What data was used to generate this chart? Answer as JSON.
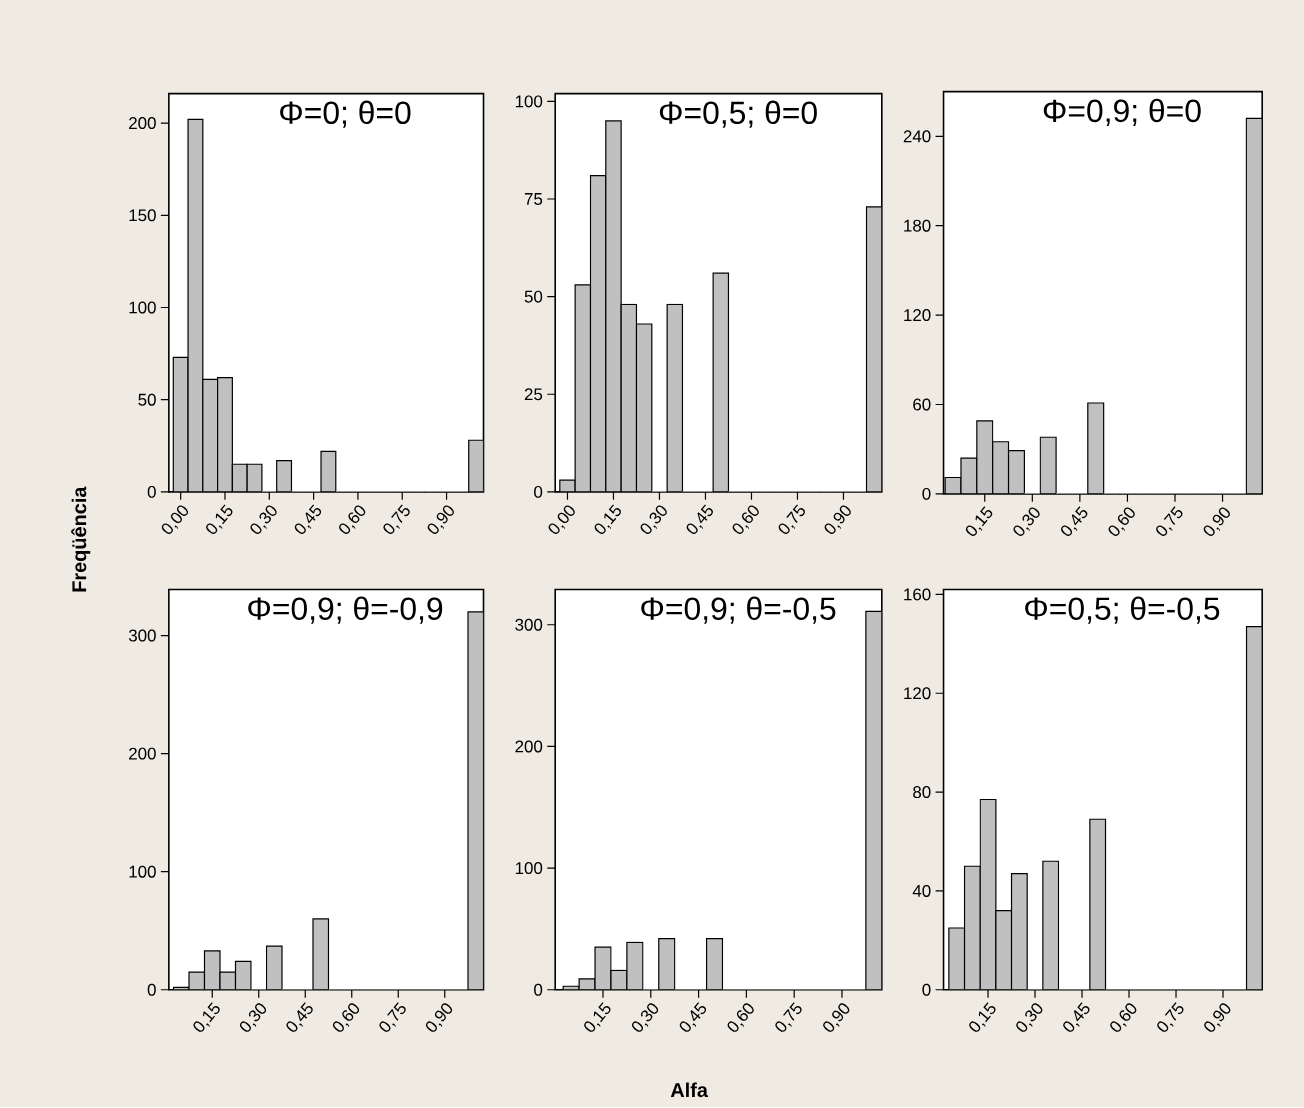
{
  "chart_data": [
    {
      "type": "histogram",
      "title": "Φ=0; θ=0",
      "ylabel": "Freqüência",
      "color": "#c0c0c0",
      "bins": [
        -0.025,
        0.025,
        0.075,
        0.125,
        0.175,
        0.225,
        0.275,
        0.325,
        0.375,
        0.425,
        0.475,
        0.525,
        0.575,
        0.625,
        0.675,
        0.725,
        0.775,
        0.825,
        0.875,
        0.925,
        0.975,
        1.025
      ],
      "values": [
        73,
        202,
        61,
        62,
        15,
        15,
        0,
        17,
        0,
        0,
        22,
        0,
        0,
        0,
        0,
        0,
        0,
        0,
        0,
        0,
        28
      ],
      "xlim": [
        -0.04,
        1.025
      ],
      "ylim": [
        0,
        216
      ],
      "xticks": [
        {
          "value": 0,
          "label": "0,00"
        },
        {
          "value": 0.15,
          "label": "0,15"
        },
        {
          "value": 0.3,
          "label": "0,30"
        },
        {
          "value": 0.45,
          "label": "0,45"
        },
        {
          "value": 0.6,
          "label": "0,60"
        },
        {
          "value": 0.75,
          "label": "0,75"
        },
        {
          "value": 0.9,
          "label": "0,90"
        }
      ],
      "yticks": [
        0,
        50,
        100,
        150,
        200
      ]
    },
    {
      "type": "histogram",
      "title": "Φ=0,5; θ=0",
      "color": "#c0c0c0",
      "bins": [
        -0.025,
        0.025,
        0.075,
        0.125,
        0.175,
        0.225,
        0.275,
        0.325,
        0.375,
        0.425,
        0.475,
        0.525,
        0.575,
        0.625,
        0.675,
        0.725,
        0.775,
        0.825,
        0.875,
        0.925,
        0.975,
        1.025
      ],
      "values": [
        3,
        53,
        81,
        95,
        48,
        43,
        0,
        48,
        0,
        0,
        56,
        0,
        0,
        0,
        0,
        0,
        0,
        0,
        0,
        0,
        73
      ],
      "xlim": [
        -0.04,
        1.025
      ],
      "ylim": [
        0,
        102
      ],
      "xticks": [
        {
          "value": 0,
          "label": "0,00"
        },
        {
          "value": 0.15,
          "label": "0,15"
        },
        {
          "value": 0.3,
          "label": "0,30"
        },
        {
          "value": 0.45,
          "label": "0,45"
        },
        {
          "value": 0.6,
          "label": "0,60"
        },
        {
          "value": 0.75,
          "label": "0,75"
        },
        {
          "value": 0.9,
          "label": "0,90"
        }
      ],
      "yticks": [
        0,
        25,
        50,
        75,
        100
      ]
    },
    {
      "type": "histogram",
      "title": "Φ=0,9; θ=0",
      "color": "#c0c0c0",
      "bins": [
        0.025,
        0.075,
        0.125,
        0.175,
        0.225,
        0.275,
        0.325,
        0.375,
        0.425,
        0.475,
        0.525,
        0.575,
        0.625,
        0.675,
        0.725,
        0.775,
        0.825,
        0.875,
        0.925,
        0.975,
        1.025
      ],
      "values": [
        11,
        24,
        49,
        35,
        29,
        0,
        38,
        0,
        0,
        61,
        0,
        0,
        0,
        0,
        0,
        0,
        0,
        0,
        0,
        252
      ],
      "xlim": [
        0.02,
        1.025
      ],
      "ylim": [
        0,
        270
      ],
      "xticks": [
        {
          "value": 0.15,
          "label": "0,15"
        },
        {
          "value": 0.3,
          "label": "0,30"
        },
        {
          "value": 0.45,
          "label": "0,45"
        },
        {
          "value": 0.6,
          "label": "0,60"
        },
        {
          "value": 0.75,
          "label": "0,75"
        },
        {
          "value": 0.9,
          "label": "0,90"
        }
      ],
      "yticks": [
        0,
        60,
        120,
        180,
        240
      ]
    },
    {
      "type": "histogram",
      "title": "Φ=0,9; θ=-0,9",
      "color": "#c0c0c0",
      "bins": [
        0.025,
        0.075,
        0.125,
        0.175,
        0.225,
        0.275,
        0.325,
        0.375,
        0.425,
        0.475,
        0.525,
        0.575,
        0.625,
        0.675,
        0.725,
        0.775,
        0.825,
        0.875,
        0.925,
        0.975,
        1.025
      ],
      "values": [
        2,
        15,
        33,
        15,
        24,
        0,
        37,
        0,
        0,
        60,
        0,
        0,
        0,
        0,
        0,
        0,
        0,
        0,
        0,
        320
      ],
      "xlim": [
        0.01,
        1.025
      ],
      "ylim": [
        0,
        339
      ],
      "xticks": [
        {
          "value": 0.15,
          "label": "0,15"
        },
        {
          "value": 0.3,
          "label": "0,30"
        },
        {
          "value": 0.45,
          "label": "0,45"
        },
        {
          "value": 0.6,
          "label": "0,60"
        },
        {
          "value": 0.75,
          "label": "0,75"
        },
        {
          "value": 0.9,
          "label": "0,90"
        }
      ],
      "yticks": [
        0,
        100,
        200,
        300
      ]
    },
    {
      "type": "histogram",
      "title": "Φ=0,9; θ=-0,5",
      "xlabel": "Alfa",
      "color": "#c0c0c0",
      "bins": [
        0.025,
        0.075,
        0.125,
        0.175,
        0.225,
        0.275,
        0.325,
        0.375,
        0.425,
        0.475,
        0.525,
        0.575,
        0.625,
        0.675,
        0.725,
        0.775,
        0.825,
        0.875,
        0.925,
        0.975,
        1.025
      ],
      "values": [
        3,
        9,
        35,
        16,
        39,
        0,
        42,
        0,
        0,
        42,
        0,
        0,
        0,
        0,
        0,
        0,
        0,
        0,
        0,
        311
      ],
      "xlim": [
        0.0,
        1.025
      ],
      "ylim": [
        0,
        329
      ],
      "xticks": [
        {
          "value": 0.15,
          "label": "0,15"
        },
        {
          "value": 0.3,
          "label": "0,30"
        },
        {
          "value": 0.45,
          "label": "0,45"
        },
        {
          "value": 0.6,
          "label": "0,60"
        },
        {
          "value": 0.75,
          "label": "0,75"
        },
        {
          "value": 0.9,
          "label": "0,90"
        }
      ],
      "yticks": [
        0,
        100,
        200,
        300
      ]
    },
    {
      "type": "histogram",
      "title": "Φ=0,5; θ=-0,5",
      "color": "#c0c0c0",
      "bins": [
        0.025,
        0.075,
        0.125,
        0.175,
        0.225,
        0.275,
        0.325,
        0.375,
        0.425,
        0.475,
        0.525,
        0.575,
        0.625,
        0.675,
        0.725,
        0.775,
        0.825,
        0.875,
        0.925,
        0.975,
        1.025
      ],
      "values": [
        25,
        50,
        77,
        32,
        47,
        0,
        52,
        0,
        0,
        69,
        0,
        0,
        0,
        0,
        0,
        0,
        0,
        0,
        0,
        147
      ],
      "xlim": [
        0.008,
        1.025
      ],
      "ylim": [
        0,
        162
      ],
      "xticks": [
        {
          "value": 0.15,
          "label": "0,15"
        },
        {
          "value": 0.3,
          "label": "0,30"
        },
        {
          "value": 0.45,
          "label": "0,45"
        },
        {
          "value": 0.6,
          "label": "0,60"
        },
        {
          "value": 0.75,
          "label": "0,75"
        },
        {
          "value": 0.9,
          "label": "0,90"
        }
      ],
      "yticks": [
        0,
        40,
        80,
        120,
        160
      ]
    }
  ]
}
